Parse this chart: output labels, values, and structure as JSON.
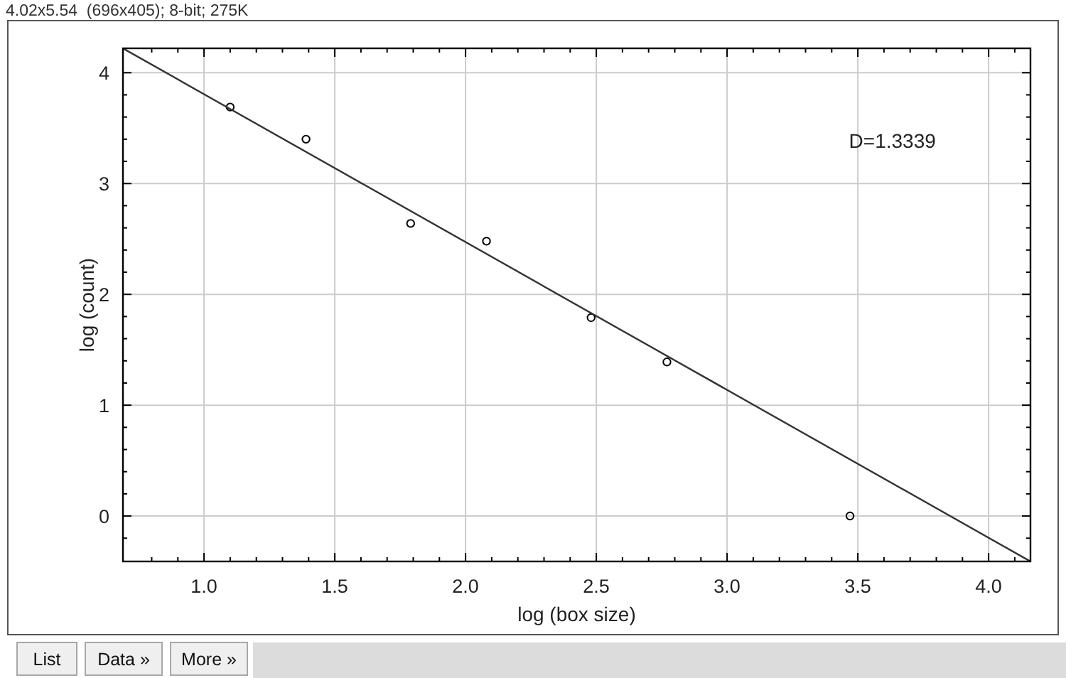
{
  "chart_data": {
    "type": "scatter",
    "subtitle": "4.02x5.54  (696x405); 8-bit; 275K",
    "xlabel": "log (box size)",
    "ylabel": "log (count)",
    "annotations": [
      "D=1.3339",
      "List",
      "Data »",
      "More »"
    ],
    "xlim": [
      0.69,
      4.16
    ],
    "ylim": [
      -0.41,
      4.22
    ],
    "xticks": [
      {
        "value": 0.8,
        "label": null
      },
      {
        "value": 0.9,
        "label": null
      },
      {
        "value": 1,
        "label": "1.0"
      },
      {
        "value": 1.1,
        "label": null
      },
      {
        "value": 1.2,
        "label": null
      },
      {
        "value": 1.3,
        "label": null
      },
      {
        "value": 1.4,
        "label": null
      },
      {
        "value": 1.5,
        "label": "1.5"
      },
      {
        "value": 1.6,
        "label": null
      },
      {
        "value": 1.7,
        "label": null
      },
      {
        "value": 1.8,
        "label": null
      },
      {
        "value": 1.9,
        "label": null
      },
      {
        "value": 2,
        "label": "2.0"
      },
      {
        "value": 2.1,
        "label": null
      },
      {
        "value": 2.2,
        "label": null
      },
      {
        "value": 2.3,
        "label": null
      },
      {
        "value": 2.4,
        "label": null
      },
      {
        "value": 2.5,
        "label": "2.5"
      },
      {
        "value": 2.6,
        "label": null
      },
      {
        "value": 2.7,
        "label": null
      },
      {
        "value": 2.8,
        "label": null
      },
      {
        "value": 2.9,
        "label": null
      },
      {
        "value": 3,
        "label": "3.0"
      },
      {
        "value": 3.1,
        "label": null
      },
      {
        "value": 3.2,
        "label": null
      },
      {
        "value": 3.3,
        "label": null
      },
      {
        "value": 3.4,
        "label": null
      },
      {
        "value": 3.5,
        "label": "3.5"
      },
      {
        "value": 3.6,
        "label": null
      },
      {
        "value": 3.7,
        "label": null
      },
      {
        "value": 3.8,
        "label": null
      },
      {
        "value": 3.9,
        "label": null
      },
      {
        "value": 4,
        "label": "4.0"
      },
      {
        "value": 4.1,
        "label": null
      }
    ],
    "yticks": [
      {
        "value": -0.2,
        "label": null
      },
      0,
      {
        "value": 0.2,
        "label": null
      },
      {
        "value": 0.4,
        "label": null
      },
      {
        "value": 0.6,
        "label": null
      },
      {
        "value": 0.8,
        "label": null
      },
      1,
      {
        "value": 1.2,
        "label": null
      },
      {
        "value": 1.4,
        "label": null
      },
      {
        "value": 1.6,
        "label": null
      },
      {
        "value": 1.8,
        "label": null
      },
      2,
      {
        "value": 2.2,
        "label": null
      },
      {
        "value": 2.4,
        "label": null
      },
      {
        "value": 2.6,
        "label": null
      },
      {
        "value": 2.8,
        "label": null
      },
      3,
      {
        "value": 3.2,
        "label": null
      },
      {
        "value": 3.4,
        "label": null
      },
      {
        "value": 3.6,
        "label": null
      },
      {
        "value": 3.8,
        "label": null
      },
      4
    ],
    "grid": true,
    "series": [
      {
        "color": "#000000",
        "marker": "circle",
        "x": [
          1.1,
          1.39,
          1.79,
          2.08,
          2.48,
          2.77,
          3.47
        ],
        "values": [
          3.69,
          3.4,
          2.64,
          2.48,
          1.79,
          1.39,
          0
        ]
      },
      {
        "type": "line",
        "color": "#333333",
        "x": [
          0.69,
          4.16
        ],
        "values": [
          4.22,
          -0.41
        ]
      }
    ]
  }
}
